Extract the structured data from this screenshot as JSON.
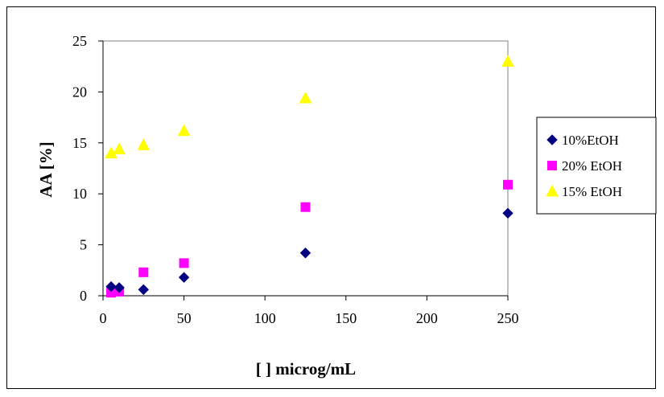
{
  "chart_data": {
    "type": "scatter",
    "title": "",
    "xlabel": "[ ] microg/mL",
    "ylabel": "AA [%]",
    "xlim": [
      0,
      250
    ],
    "ylim": [
      0,
      25
    ],
    "xticks": [
      0,
      50,
      100,
      150,
      200,
      250
    ],
    "yticks": [
      0,
      5,
      10,
      15,
      20,
      25
    ],
    "grid": false,
    "legend_position": "right",
    "series": [
      {
        "name": "10%EtOH",
        "marker": "diamond",
        "color": "#000080",
        "x": [
          5,
          10,
          25,
          50,
          125,
          250
        ],
        "y": [
          0.9,
          0.8,
          0.6,
          1.8,
          4.2,
          8.1
        ]
      },
      {
        "name": "20% EtOH",
        "marker": "square",
        "color": "#FF00FF",
        "x": [
          5,
          10,
          25,
          50,
          125,
          250
        ],
        "y": [
          0.3,
          0.4,
          2.3,
          3.2,
          8.7,
          10.9
        ]
      },
      {
        "name": "15% EtOH",
        "marker": "triangle",
        "color": "#FFFF00",
        "x": [
          5,
          10,
          25,
          50,
          125,
          250
        ],
        "y": [
          14.0,
          14.4,
          14.8,
          16.2,
          19.4,
          23.0
        ]
      }
    ]
  }
}
